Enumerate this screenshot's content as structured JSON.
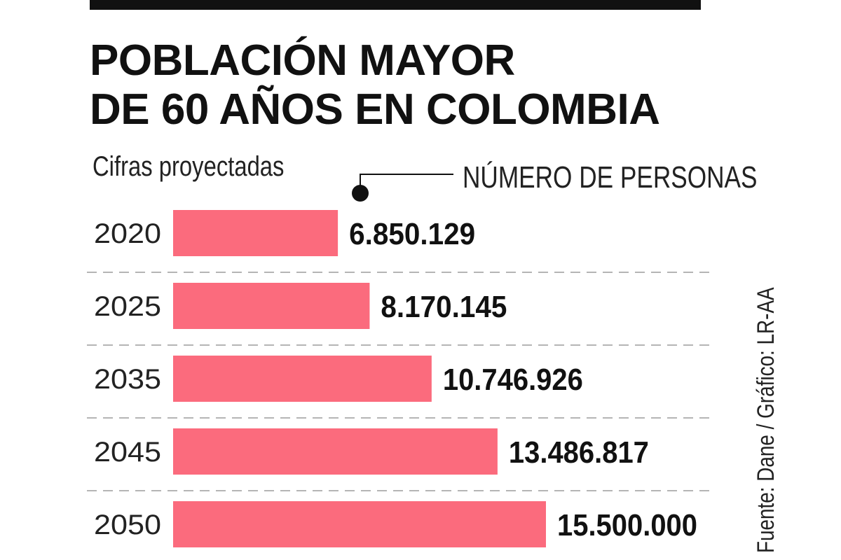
{
  "title_line1": "POBLACIÓN MAYOR",
  "title_line2": "DE 60 AÑOS EN COLOMBIA",
  "subtitle": "Cifras proyectadas",
  "legend_label": "NÚMERO DE PERSONAS",
  "source": "Fuente: Dane / Gráfico: LR-AA",
  "colors": {
    "bar": "#fb6b7d",
    "text": "#111111",
    "divider": "#b5b5b5"
  },
  "chart_data": {
    "type": "bar",
    "orientation": "horizontal",
    "title": "POBLACIÓN MAYOR DE 60 AÑOS EN COLOMBIA",
    "subtitle": "Cifras proyectadas",
    "categories": [
      "2020",
      "2025",
      "2035",
      "2045",
      "2050"
    ],
    "values": [
      6850129,
      8170145,
      10746926,
      13486817,
      15500000
    ],
    "value_labels": [
      "6.850.129",
      "8.170.145",
      "10.746.926",
      "13.486.817",
      "15.500.000"
    ],
    "series": [
      {
        "name": "NÚMERO DE PERSONAS",
        "values": [
          6850129,
          8170145,
          10746926,
          13486817,
          15500000
        ]
      }
    ],
    "xlabel": "",
    "ylabel": "",
    "grid": false,
    "legend_position": "top-right"
  }
}
